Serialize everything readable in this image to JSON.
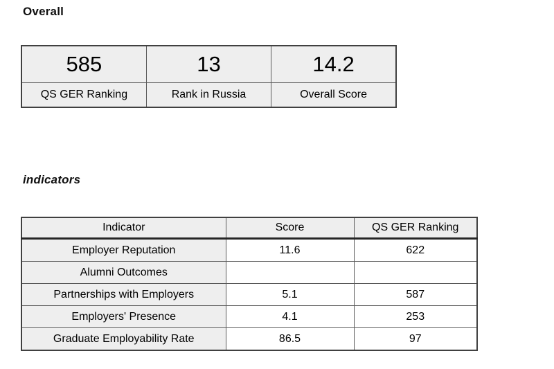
{
  "headings": {
    "overall": "Overall",
    "indicators": "indicators"
  },
  "overall_summary": {
    "cards": [
      {
        "value": "585",
        "label": "QS GER Ranking"
      },
      {
        "value": "13",
        "label": "Rank in Russia"
      },
      {
        "value": "14.2",
        "label": "Overall Score"
      }
    ]
  },
  "indicators_table": {
    "columns": [
      "Indicator",
      "Score",
      "QS GER Ranking"
    ],
    "rows": [
      {
        "indicator": "Employer Reputation",
        "score": "11.6",
        "qs_ger_ranking": "622"
      },
      {
        "indicator": "Alumni Outcomes",
        "score": "",
        "qs_ger_ranking": ""
      },
      {
        "indicator": "Partnerships with Employers",
        "score": "5.1",
        "qs_ger_ranking": "587"
      },
      {
        "indicator": "Employers' Presence",
        "score": "4.1",
        "qs_ger_ranking": "253"
      },
      {
        "indicator": "Graduate Employability Rate",
        "score": "86.5",
        "qs_ger_ranking": "97"
      }
    ]
  },
  "colors": {
    "page_background": "#ffffff",
    "cell_background": "#eeeeee",
    "border_outer": "#404040",
    "border_inner": "#595959",
    "header_underline": "#262626",
    "text": "#000000"
  }
}
